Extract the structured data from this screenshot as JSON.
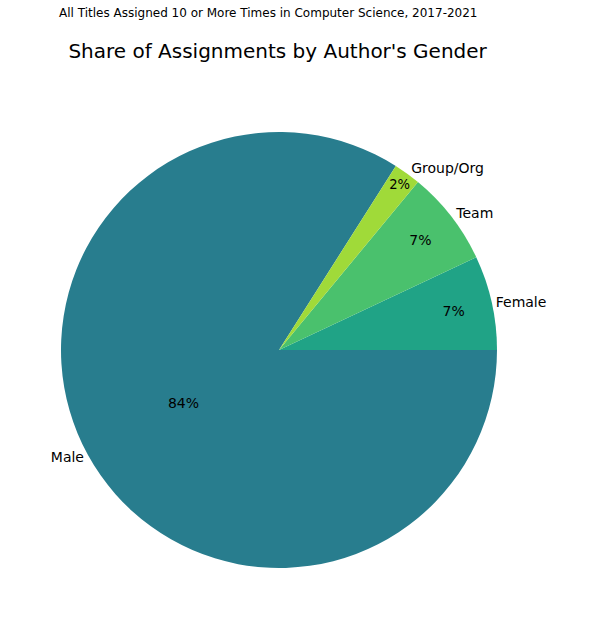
{
  "chart_data": {
    "type": "pie",
    "title": "Share of Assignments by Author's Gender",
    "subtitle": "All Titles Assigned 10 or More Times in Computer Science, 2017-2021",
    "categories": [
      "Male",
      "Female",
      "Team",
      "Group/Org"
    ],
    "values": [
      84,
      7,
      7,
      2
    ],
    "value_labels": [
      "84%",
      "7%",
      "7%",
      "2%"
    ],
    "colors": [
      "#287d8e",
      "#20a386",
      "#4ac16d",
      "#a0da39"
    ],
    "data_labels": true
  }
}
